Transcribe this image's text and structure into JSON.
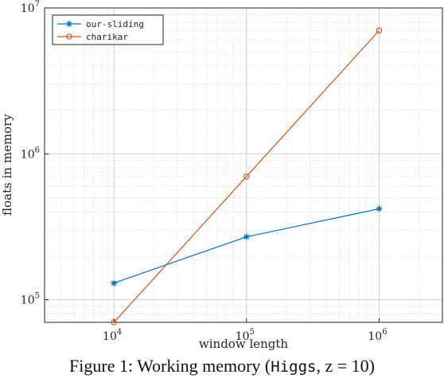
{
  "chart_data": {
    "type": "line",
    "xscale": "log",
    "yscale": "log",
    "xlim": [
      3000,
      3000000
    ],
    "ylim": [
      70000,
      10000000
    ],
    "xlabel": "window length",
    "ylabel": "floats in memory",
    "x_ticks": [
      10000,
      100000,
      1000000
    ],
    "x_tick_labels": [
      {
        "base": "10",
        "exp": "4"
      },
      {
        "base": "10",
        "exp": "5"
      },
      {
        "base": "10",
        "exp": "6"
      }
    ],
    "y_ticks": [
      100000,
      1000000,
      10000000
    ],
    "y_tick_labels": [
      {
        "base": "10",
        "exp": "5"
      },
      {
        "base": "10",
        "exp": "6"
      },
      {
        "base": "10",
        "exp": "7"
      }
    ],
    "grid": true,
    "legend_position": "top-left",
    "series": [
      {
        "name": "our-sliding",
        "color": "#0072BD",
        "marker": "asterisk",
        "x": [
          10000,
          100000,
          1000000
        ],
        "y": [
          130000,
          270000,
          420000
        ]
      },
      {
        "name": "charikar",
        "color": "#D95319",
        "marker": "circle",
        "x": [
          10000,
          100000,
          1000000
        ],
        "y": [
          70000,
          700000,
          7000000
        ]
      }
    ]
  },
  "caption": {
    "prefix": "Figure 1: Working memory (",
    "mono": "Higgs",
    "suffix": ", z = 10)"
  }
}
